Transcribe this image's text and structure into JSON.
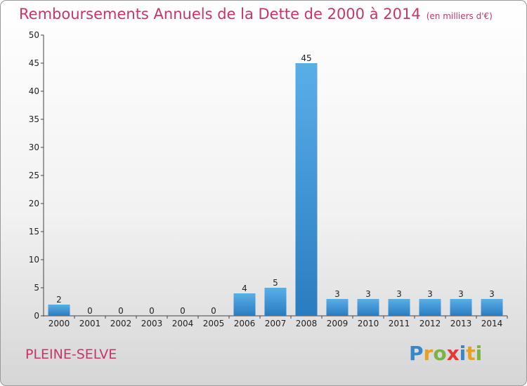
{
  "header": {
    "title": "Remboursements Annuels de la Dette de 2000 à 2014",
    "unit": "(en milliers d'€)"
  },
  "footer": {
    "commune": "PLEINE-SELVE",
    "logo_letters": [
      "P",
      "r",
      "o",
      "x",
      "i",
      "t",
      "i"
    ],
    "logo_colors": [
      "#3a86c8",
      "#e8a020",
      "#7cb342",
      "#e53935",
      "#3a86c8",
      "#e8a020",
      "#7cb342"
    ]
  },
  "colors": {
    "title": "#c8356a",
    "bar_light": "#5aaee8",
    "bar_dark": "#2a7cc0"
  },
  "chart_data": {
    "type": "bar",
    "title": "Remboursements Annuels de la Dette de 2000 à 2014",
    "subtitle": "(en milliers d'€)",
    "categories": [
      "2000",
      "2001",
      "2002",
      "2003",
      "2004",
      "2005",
      "2006",
      "2007",
      "2008",
      "2009",
      "2010",
      "2011",
      "2012",
      "2013",
      "2014"
    ],
    "values": [
      2,
      0,
      0,
      0,
      0,
      0,
      4,
      5,
      45,
      3,
      3,
      3,
      3,
      3,
      3
    ],
    "ylim": [
      0,
      50
    ],
    "yticks": [
      0,
      5,
      10,
      15,
      20,
      25,
      30,
      35,
      40,
      45,
      50
    ],
    "grid": false,
    "xlabel": "",
    "ylabel": ""
  }
}
